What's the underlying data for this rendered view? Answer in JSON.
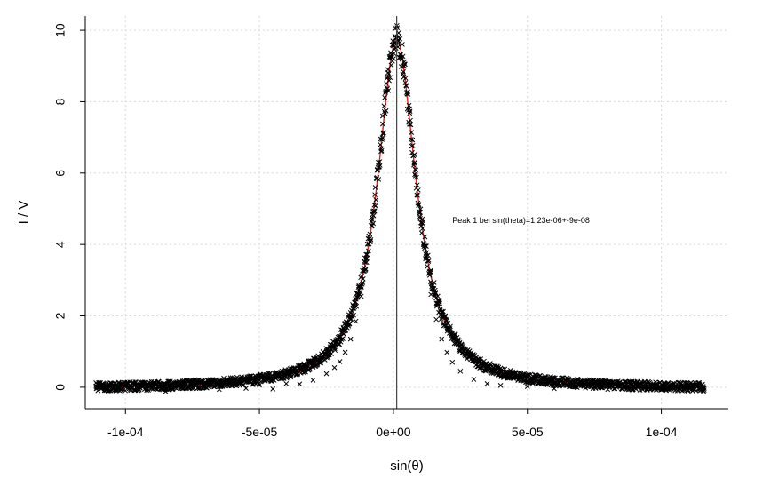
{
  "chart_data": {
    "type": "scatter",
    "title": "",
    "xlabel": "sin(θ)",
    "ylabel": "I / V",
    "xlim": [
      -0.000115,
      0.000125
    ],
    "ylim": [
      -0.6,
      10.4
    ],
    "xticks": [
      -0.0001,
      -5e-05,
      0,
      5e-05,
      0.0001
    ],
    "xtick_labels": [
      "-1e-04",
      "-5e-05",
      "0e+00",
      "5e-05",
      "1e-04"
    ],
    "yticks": [
      0,
      2,
      4,
      6,
      8,
      10
    ],
    "ytick_labels": [
      "0",
      "2",
      "4",
      "6",
      "8",
      "10"
    ],
    "grid": true,
    "legend": "none",
    "series": [
      {
        "kind": "scatter",
        "marker": "x",
        "color": "#000000",
        "x_range": [
          -0.000111,
          0.000116
        ],
        "points": [
          [
            -0.000111,
            0.03
          ],
          [
            -0.000105,
            -0.08
          ],
          [
            -0.0001,
            0.06
          ],
          [
            -9.5e-05,
            -0.05
          ],
          [
            -9e-05,
            0.02
          ],
          [
            -8.5e-05,
            -0.12
          ],
          [
            -8e-05,
            0.05
          ],
          [
            -7.5e-05,
            -0.04
          ],
          [
            -7e-05,
            0.07
          ],
          [
            -6.5e-05,
            -0.06
          ],
          [
            -6e-05,
            0.04
          ],
          [
            -5.5e-05,
            -0.03
          ],
          [
            -5e-05,
            0.06
          ],
          [
            -4.5e-05,
            -0.05
          ],
          [
            -4e-05,
            0.1
          ],
          [
            -3.5e-05,
            0.09
          ],
          [
            -3e-05,
            0.2
          ],
          [
            -2.5e-05,
            0.38
          ],
          [
            -2.2e-05,
            0.55
          ],
          [
            -2e-05,
            0.72
          ],
          [
            -1.8e-05,
            0.98
          ],
          [
            -1.6e-05,
            1.35
          ],
          [
            -1.4e-05,
            1.85
          ],
          [
            -1.2e-05,
            2.55
          ],
          [
            -1e-05,
            3.5
          ],
          [
            -8e-06,
            4.7
          ],
          [
            -6e-06,
            6.1
          ],
          [
            -4e-06,
            7.6
          ],
          [
            -2e-06,
            8.9
          ],
          [
            0,
            9.6
          ],
          [
            1e-06,
            9.8
          ],
          [
            2e-06,
            9.7
          ],
          [
            4e-06,
            9.0
          ],
          [
            6e-06,
            7.8
          ],
          [
            8e-06,
            6.3
          ],
          [
            1e-05,
            4.9
          ],
          [
            1.2e-05,
            3.6
          ],
          [
            1.4e-05,
            2.6
          ],
          [
            1.6e-05,
            1.9
          ],
          [
            1.8e-05,
            1.35
          ],
          [
            2e-05,
            0.98
          ],
          [
            2.2e-05,
            0.7
          ],
          [
            2.5e-05,
            0.45
          ],
          [
            3e-05,
            0.22
          ],
          [
            3.5e-05,
            0.1
          ],
          [
            4e-05,
            0.05
          ],
          [
            5e-05,
            0.02
          ],
          [
            6e-05,
            -0.04
          ],
          [
            7e-05,
            0.05
          ],
          [
            8e-05,
            -0.06
          ],
          [
            9e-05,
            0.03
          ],
          [
            0.0001,
            -0.05
          ],
          [
            0.00011,
            0.04
          ],
          [
            0.000116,
            -0.03
          ]
        ]
      },
      {
        "kind": "line",
        "color": "#e0201a",
        "peak_x": 1.23e-06,
        "peak_y": 9.75,
        "baseline": -0.05,
        "x_range": [
          -0.000111,
          0.000116
        ]
      }
    ],
    "vertical_line": {
      "x": 1.23e-06,
      "color": "#444444"
    },
    "annotations": [
      {
        "text": "Peak 1 bei sin(theta)=1.23e-06+-9e-08",
        "x": 2.2e-05,
        "y": 4.6
      }
    ]
  }
}
